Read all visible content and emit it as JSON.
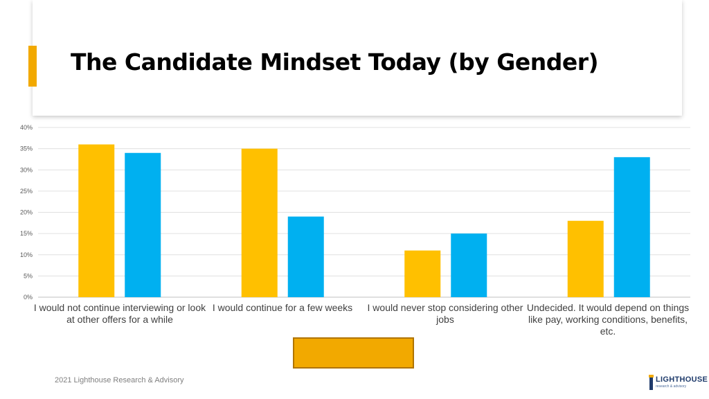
{
  "slide": {
    "title": "The Candidate Mindset Today (by Gender)",
    "footer": "2021 Lighthouse Research & Advisory",
    "accent_color": "#f2a900"
  },
  "logo": {
    "name": "LIGHTHOUSE",
    "tagline": "research & advisory",
    "icon": "lighthouse-icon"
  },
  "chart_data": {
    "type": "bar",
    "categories": [
      "I would not continue interviewing or look at other offers for a while",
      "I would continue for a few weeks",
      "I would never stop considering other jobs",
      "Undecided. It would depend on things like pay, working conditions, benefits, etc."
    ],
    "series": [
      {
        "values": [
          36,
          35,
          11,
          18
        ],
        "color": "#ffc000"
      },
      {
        "values": [
          34,
          19,
          15,
          33
        ],
        "color": "#00b0f0"
      }
    ],
    "ylim": [
      0,
      40
    ],
    "yticks": [
      "0%",
      "5%",
      "10%",
      "15%",
      "20%",
      "25%",
      "30%",
      "35%",
      "40%"
    ],
    "grid": true,
    "title": "",
    "xlabel": "",
    "ylabel": ""
  }
}
